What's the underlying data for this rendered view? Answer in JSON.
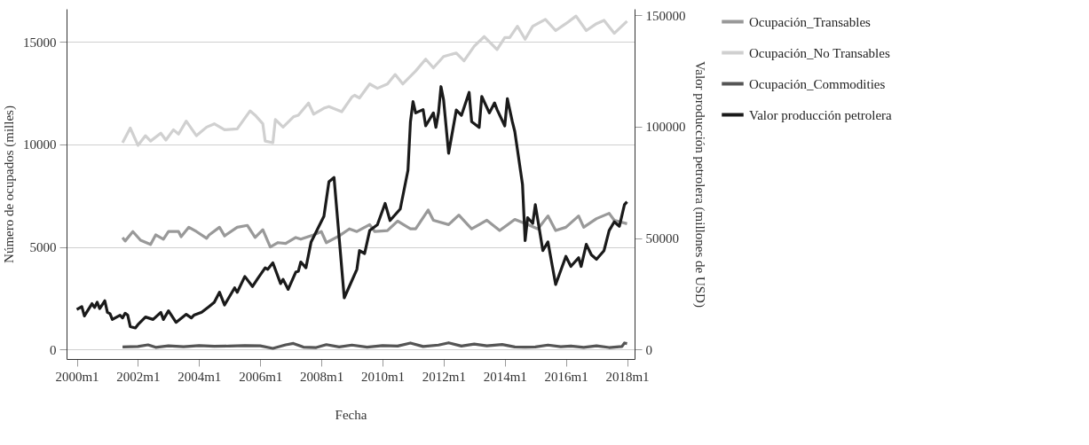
{
  "chart_data": {
    "type": "line",
    "xlabel": "Fecha",
    "ylabel": "Número de ocupados (milles)",
    "y2label": "Valor producción petrolera (millones de USD)",
    "xlim": [
      "1999-09",
      "2018-04"
    ],
    "xticks": [
      {
        "value": "2000-01",
        "label": "2000m1"
      },
      {
        "value": "2002-01",
        "label": "2002m1"
      },
      {
        "value": "2004-01",
        "label": "2004m1"
      },
      {
        "value": "2006-01",
        "label": "2006m1"
      },
      {
        "value": "2008-01",
        "label": "2008m1"
      },
      {
        "value": "2010-01",
        "label": "2010m1"
      },
      {
        "value": "2012-01",
        "label": "2012m1"
      },
      {
        "value": "2014-01",
        "label": "2014m1"
      },
      {
        "value": "2016-01",
        "label": "2016m1"
      },
      {
        "value": "2018-01",
        "label": "2018m1"
      }
    ],
    "ylim": [
      -460,
      16600
    ],
    "yticks": [
      0,
      5000,
      10000,
      15000
    ],
    "y2lim": [
      -4250,
      152900
    ],
    "y2ticks": [
      0,
      50000,
      100000,
      150000
    ],
    "grid": "y",
    "legend": "right",
    "line_style": "solid",
    "series": [
      {
        "name": "Ocupación_Transables",
        "color": "#999999",
        "x": [
          "2001-07",
          "2001-08",
          "2001-11",
          "2002-02",
          "2002-06",
          "2002-08",
          "2002-11",
          "2003-01",
          "2003-05",
          "2003-06",
          "2003-09",
          "2003-12",
          "2004-04",
          "2004-05",
          "2004-09",
          "2004-11",
          "2005-04",
          "2005-08",
          "2005-11",
          "2006-02",
          "2006-05",
          "2006-08",
          "2006-11",
          "2007-03",
          "2007-05",
          "2007-10",
          "2008-01",
          "2008-03",
          "2008-08",
          "2008-12",
          "2009-03",
          "2009-08",
          "2009-10",
          "2010-03",
          "2010-07",
          "2010-12",
          "2011-02",
          "2011-07",
          "2011-09",
          "2012-03",
          "2012-07",
          "2012-12",
          "2013-06",
          "2013-11",
          "2014-05",
          "2014-10",
          "2015-02",
          "2015-06",
          "2015-09",
          "2016-01",
          "2016-06",
          "2016-08",
          "2017-01",
          "2017-06",
          "2017-08",
          "2018-01"
        ],
        "values": [
          5460,
          5290,
          5750,
          5330,
          5120,
          5590,
          5380,
          5750,
          5750,
          5500,
          5960,
          5750,
          5420,
          5590,
          5960,
          5540,
          5960,
          6050,
          5460,
          5840,
          5000,
          5210,
          5170,
          5460,
          5380,
          5590,
          5750,
          5210,
          5540,
          5880,
          5750,
          6090,
          5750,
          5800,
          6260,
          5880,
          5880,
          6800,
          6300,
          6090,
          6550,
          5880,
          6300,
          5800,
          6340,
          6090,
          5880,
          6510,
          5800,
          5960,
          6510,
          5960,
          6380,
          6640,
          6300,
          6130
        ]
      },
      {
        "name": "Ocupación_No Transables",
        "color": "#d0d0d0",
        "x": [
          "2001-07",
          "2001-10",
          "2002-01",
          "2002-04",
          "2002-06",
          "2002-10",
          "2002-12",
          "2003-03",
          "2003-05",
          "2003-08",
          "2003-12",
          "2004-04",
          "2004-07",
          "2004-11",
          "2005-04",
          "2005-09",
          "2005-11",
          "2006-02",
          "2006-03",
          "2006-06",
          "2006-07",
          "2006-10",
          "2007-02",
          "2007-04",
          "2007-08",
          "2007-10",
          "2008-02",
          "2008-04",
          "2008-09",
          "2009-01",
          "2009-02",
          "2009-04",
          "2009-08",
          "2009-11",
          "2010-03",
          "2010-06",
          "2010-09",
          "2011-02",
          "2011-06",
          "2011-09",
          "2012-01",
          "2012-06",
          "2012-09",
          "2013-01",
          "2013-05",
          "2013-10",
          "2014-01",
          "2014-03",
          "2014-06",
          "2014-09",
          "2014-12",
          "2015-05",
          "2015-09",
          "2016-01",
          "2016-05",
          "2016-09",
          "2017-01",
          "2017-04",
          "2017-08",
          "2018-01"
        ],
        "values": [
          10080,
          10790,
          9950,
          10420,
          10160,
          10540,
          10210,
          10710,
          10500,
          11130,
          10420,
          10840,
          11000,
          10710,
          10750,
          11630,
          11420,
          11000,
          10160,
          10080,
          11210,
          10840,
          11340,
          11420,
          12010,
          11470,
          11760,
          11840,
          11590,
          12310,
          12390,
          12260,
          12940,
          12730,
          12940,
          13400,
          12940,
          13570,
          14150,
          13730,
          14280,
          14450,
          14070,
          14780,
          15250,
          14620,
          15200,
          15200,
          15750,
          15120,
          15750,
          16090,
          15540,
          15880,
          16250,
          15540,
          15880,
          16040,
          15410,
          16000
        ]
      },
      {
        "name": "Ocupación_Commodities",
        "color": "#555555",
        "x": [
          "2001-07",
          "2002-01",
          "2002-05",
          "2002-08",
          "2003-01",
          "2003-07",
          "2004-01",
          "2004-07",
          "2005-01",
          "2005-07",
          "2006-01",
          "2006-06",
          "2006-11",
          "2007-02",
          "2007-06",
          "2007-11",
          "2008-03",
          "2008-08",
          "2009-01",
          "2009-07",
          "2010-01",
          "2010-07",
          "2010-12",
          "2011-05",
          "2011-11",
          "2012-03",
          "2012-08",
          "2013-01",
          "2013-06",
          "2013-12",
          "2014-05",
          "2014-09",
          "2015-01",
          "2015-06",
          "2015-11",
          "2016-03",
          "2016-08",
          "2017-01",
          "2017-06",
          "2017-11",
          "2017-12",
          "2018-01"
        ],
        "values": [
          130,
          150,
          230,
          110,
          180,
          140,
          190,
          160,
          170,
          190,
          180,
          60,
          230,
          300,
          120,
          100,
          240,
          130,
          220,
          120,
          190,
          170,
          320,
          150,
          220,
          330,
          170,
          270,
          180,
          250,
          130,
          120,
          130,
          220,
          140,
          170,
          110,
          180,
          100,
          150,
          320,
          290
        ]
      },
      {
        "name": "Valor producción petrolera",
        "color": "#1a1a1a",
        "axis": "y2",
        "x": [
          "2000-01",
          "2000-03",
          "2000-04",
          "2000-07",
          "2000-08",
          "2000-09",
          "2000-10",
          "2000-12",
          "2001-01",
          "2001-02",
          "2001-03",
          "2001-06",
          "2001-07",
          "2001-08",
          "2001-09",
          "2001-10",
          "2001-12",
          "2002-01",
          "2002-04",
          "2002-07",
          "2002-10",
          "2002-11",
          "2003-01",
          "2003-04",
          "2003-08",
          "2003-10",
          "2003-11",
          "2004-02",
          "2004-05",
          "2004-07",
          "2004-09",
          "2004-11",
          "2005-03",
          "2005-04",
          "2005-07",
          "2005-10",
          "2005-12",
          "2006-03",
          "2006-04",
          "2006-06",
          "2006-09",
          "2006-10",
          "2006-12",
          "2007-03",
          "2007-04",
          "2007-05",
          "2007-07",
          "2007-09",
          "2008-02",
          "2008-04",
          "2008-06",
          "2008-10",
          "2009-03",
          "2009-04",
          "2009-06",
          "2009-08",
          "2009-11",
          "2010-02",
          "2010-04",
          "2010-06",
          "2010-08",
          "2010-11",
          "2010-12",
          "2011-01",
          "2011-02",
          "2011-05",
          "2011-06",
          "2011-09",
          "2011-10",
          "2011-11",
          "2011-12",
          "2012-01",
          "2012-03",
          "2012-06",
          "2012-08",
          "2012-11",
          "2012-12",
          "2013-03",
          "2013-04",
          "2013-07",
          "2013-09",
          "2013-10",
          "2014-01",
          "2014-02",
          "2014-04",
          "2014-05",
          "2014-08",
          "2014-09",
          "2014-10",
          "2014-12",
          "2015-01",
          "2015-04",
          "2015-06",
          "2015-09",
          "2016-01",
          "2016-03",
          "2016-06",
          "2016-07",
          "2016-09",
          "2016-11",
          "2017-01",
          "2017-04",
          "2017-06",
          "2017-08",
          "2017-10",
          "2017-12",
          "2018-01"
        ],
        "values": [
          18000,
          19300,
          15100,
          20600,
          18900,
          21200,
          18400,
          21900,
          16700,
          16100,
          13500,
          15400,
          14200,
          16300,
          15400,
          10300,
          9700,
          11200,
          14600,
          13500,
          16700,
          13500,
          17400,
          12200,
          15800,
          14200,
          15400,
          16700,
          19300,
          21200,
          25700,
          20000,
          27700,
          25700,
          32800,
          28300,
          31800,
          36700,
          36000,
          38900,
          29600,
          31500,
          27000,
          34700,
          35100,
          39300,
          36700,
          48300,
          59800,
          75300,
          77200,
          23200,
          36000,
          44400,
          43100,
          53400,
          56000,
          65600,
          57900,
          60500,
          63100,
          80400,
          102300,
          111300,
          106200,
          107700,
          100400,
          106200,
          99700,
          106200,
          118000,
          112000,
          88100,
          107500,
          105100,
          115400,
          102300,
          99700,
          113600,
          106200,
          110700,
          107700,
          100400,
          112600,
          102300,
          97800,
          74000,
          48900,
          59200,
          56600,
          65000,
          44400,
          48300,
          29200,
          41800,
          37300,
          41200,
          37300,
          47200,
          42500,
          40500,
          44400,
          53400,
          57300,
          55300,
          65000,
          66300
        ]
      }
    ]
  }
}
